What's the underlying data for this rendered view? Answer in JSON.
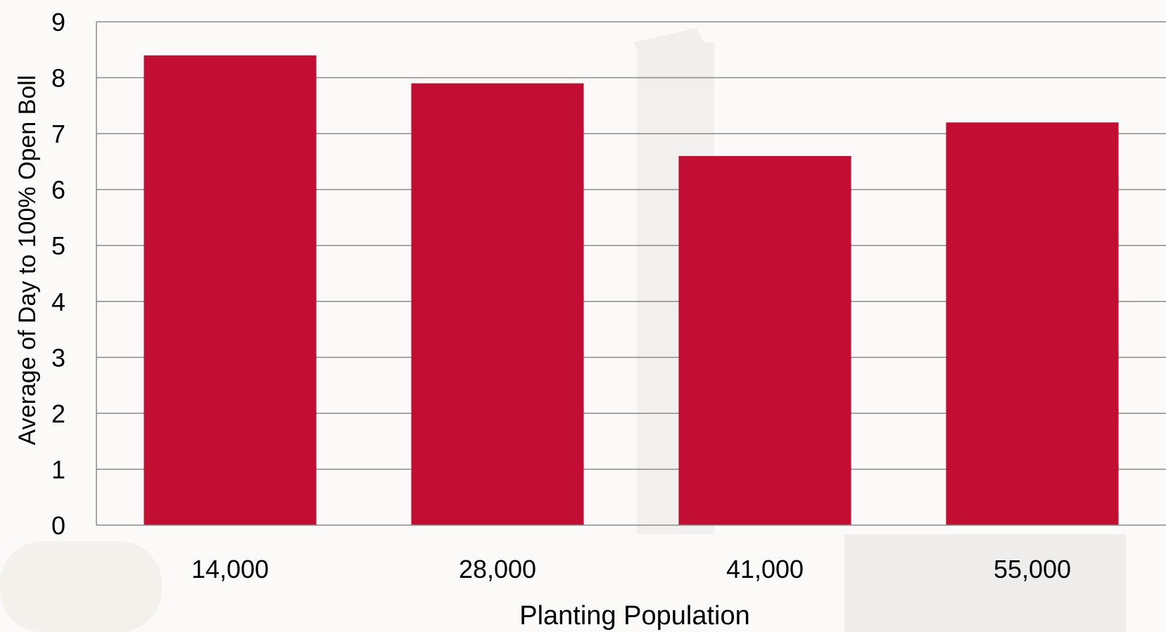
{
  "chart_data": {
    "type": "bar",
    "title": "",
    "xlabel": "Planting Population",
    "ylabel": "Average of Day to 100% Open Boll",
    "categories": [
      "14,000",
      "28,000",
      "41,000",
      "55,000"
    ],
    "values": [
      8.4,
      7.9,
      6.6,
      7.2
    ],
    "ylim": [
      0,
      9
    ],
    "yticks": [
      "0",
      "1",
      "2",
      "3",
      "4",
      "5",
      "6",
      "7",
      "8",
      "9"
    ],
    "grid": true,
    "legend": "none",
    "bar_color": "#c20e32",
    "grid_color": "#8a8a8a"
  }
}
